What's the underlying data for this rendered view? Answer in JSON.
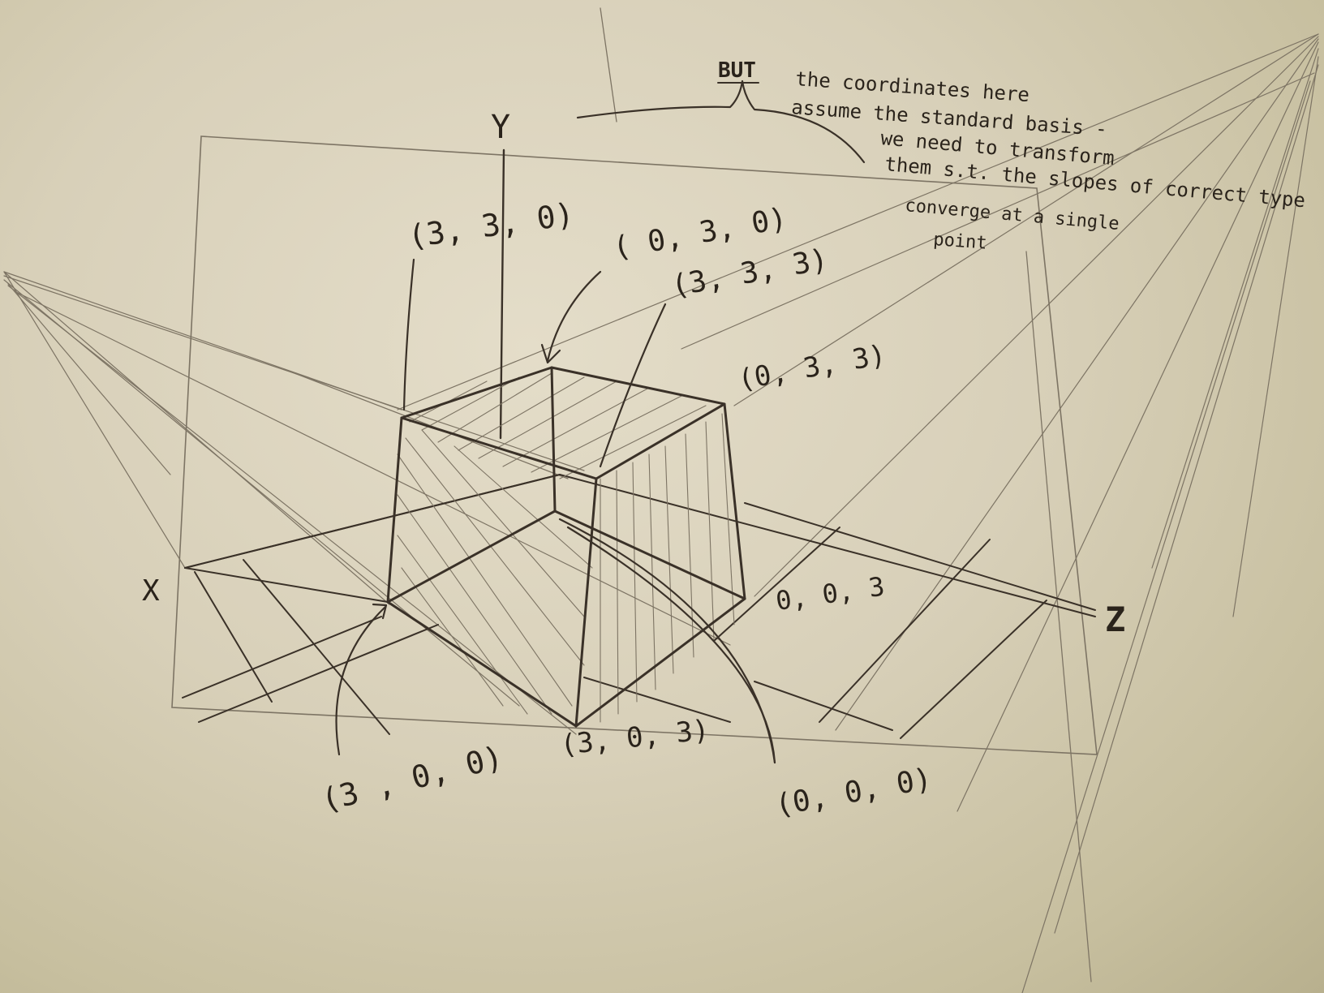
{
  "note": {
    "heading": "BUT",
    "lines": [
      "the coordinates here",
      "assume the standard basis -",
      "we need to transform",
      "them s.t. the slopes of correct type",
      "converge at a single",
      "point"
    ]
  },
  "axes": {
    "x": "X",
    "y": "Y",
    "z": "Z"
  },
  "vertices": {
    "v330": "(3, 3, 0)",
    "v030": "( 0, 3, 0)",
    "v333": "(3, 3, 3)",
    "v033": "(0, 3, 3)",
    "v003": "0, 0, 3",
    "v303": "(3, 0, 3)",
    "v300": "(3 , 0, 0)",
    "v000": "(0, 0, 0)"
  },
  "colors": {
    "paper": "#ddd5bf",
    "graphite": "#3a3128",
    "faint_graphite": "#7d7464"
  }
}
